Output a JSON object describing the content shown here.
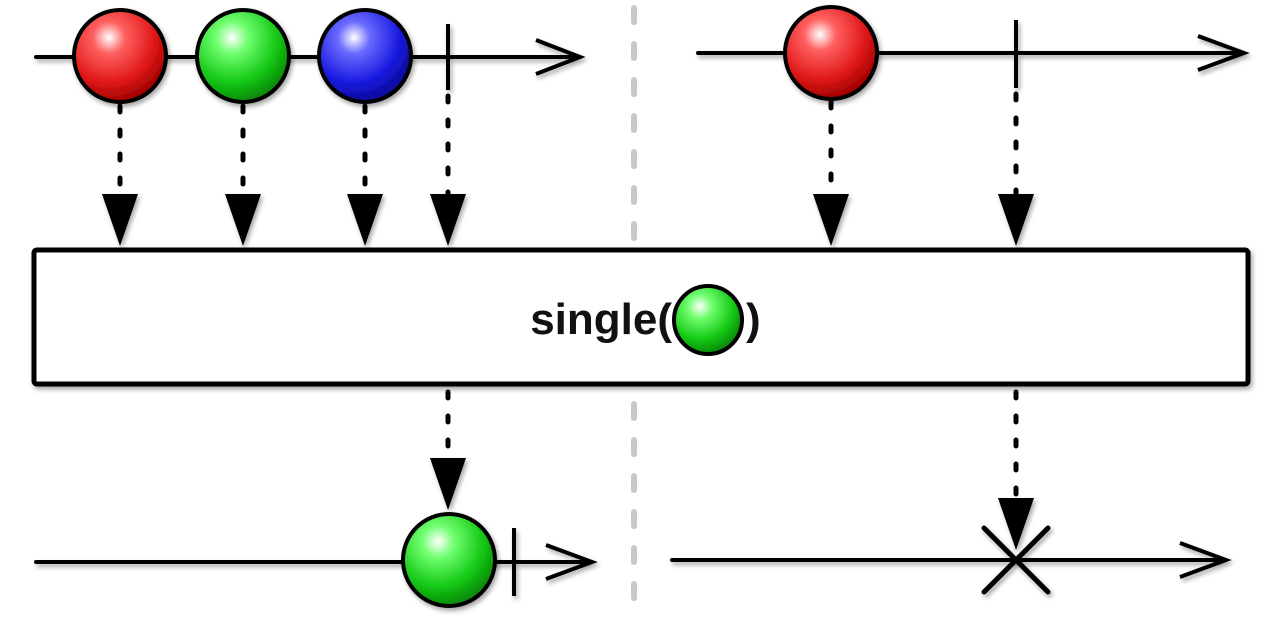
{
  "operator": {
    "prefix": "single(",
    "suffix": ")",
    "argument_marble": "green"
  },
  "colors": {
    "red": "#e01818",
    "green": "#14c814",
    "blue": "#1a1ae0",
    "line": "#000000",
    "divider": "#c8c8c8"
  },
  "left_scenario": {
    "input_emissions": [
      "red",
      "green",
      "blue"
    ],
    "input_completes": true,
    "output_emissions": [
      "green"
    ],
    "output_completes": true
  },
  "right_scenario": {
    "input_emissions": [
      "red"
    ],
    "input_completes": true,
    "output_emissions": [],
    "output_error": true
  }
}
